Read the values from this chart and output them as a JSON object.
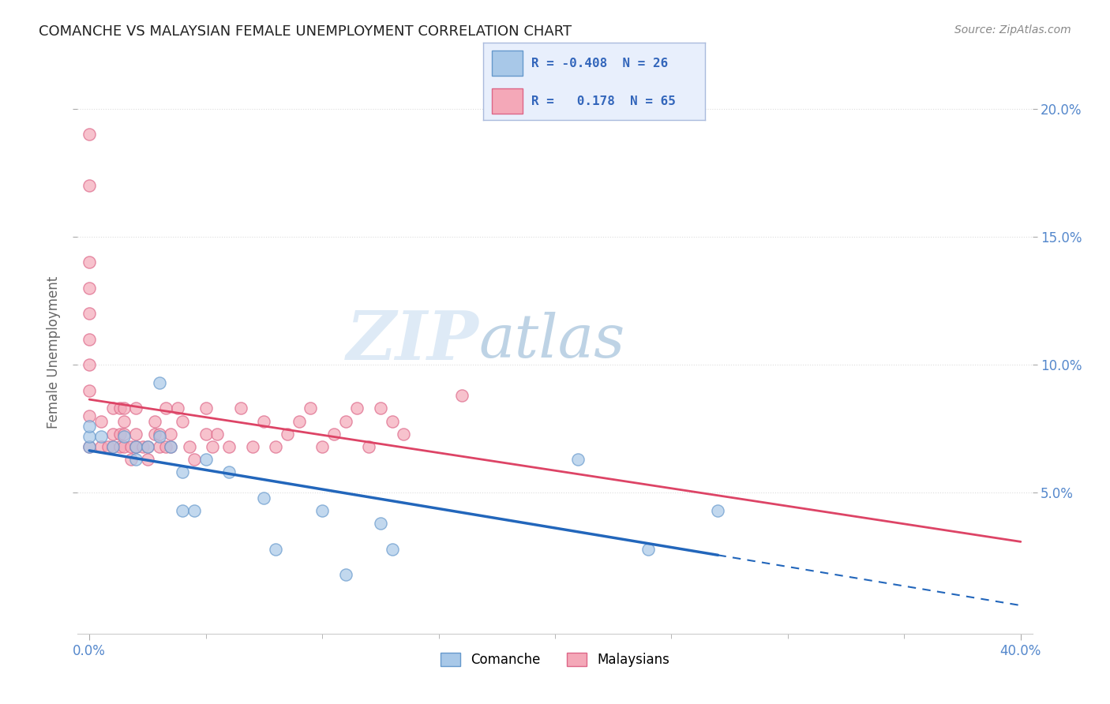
{
  "title": "COMANCHE VS MALAYSIAN FEMALE UNEMPLOYMENT CORRELATION CHART",
  "source": "Source: ZipAtlas.com",
  "ylabel": "Female Unemployment",
  "xlim": [
    -0.005,
    0.405
  ],
  "ylim": [
    -0.005,
    0.215
  ],
  "x_ticks_minor": [
    0.05,
    0.1,
    0.15,
    0.2,
    0.25,
    0.3,
    0.35
  ],
  "x_tick_edge_left": "0.0%",
  "x_tick_edge_right": "40.0%",
  "y_ticks": [
    0.05,
    0.1,
    0.15,
    0.2
  ],
  "y_tick_labels": [
    "5.0%",
    "10.0%",
    "15.0%",
    "20.0%"
  ],
  "comanche_color": "#a8c8e8",
  "comanche_edge_color": "#6699cc",
  "malaysian_color": "#f4a8b8",
  "malaysian_edge_color": "#dd6688",
  "comanche_line_color": "#2266bb",
  "malaysian_line_color": "#dd4466",
  "legend_R_comanche": "-0.408",
  "legend_N_comanche": "26",
  "legend_R_malaysian": "0.178",
  "legend_N_malaysian": "65",
  "comanche_points_x": [
    0.0,
    0.0,
    0.0,
    0.005,
    0.01,
    0.015,
    0.02,
    0.02,
    0.025,
    0.03,
    0.03,
    0.035,
    0.04,
    0.04,
    0.045,
    0.05,
    0.06,
    0.075,
    0.08,
    0.1,
    0.11,
    0.125,
    0.13,
    0.21,
    0.24,
    0.27
  ],
  "comanche_points_y": [
    0.068,
    0.072,
    0.076,
    0.072,
    0.068,
    0.072,
    0.068,
    0.063,
    0.068,
    0.072,
    0.093,
    0.068,
    0.058,
    0.043,
    0.043,
    0.063,
    0.058,
    0.048,
    0.028,
    0.043,
    0.018,
    0.038,
    0.028,
    0.063,
    0.028,
    0.043
  ],
  "malaysian_points_x": [
    0.0,
    0.0,
    0.0,
    0.0,
    0.0,
    0.0,
    0.0,
    0.0,
    0.0,
    0.0,
    0.005,
    0.005,
    0.008,
    0.01,
    0.01,
    0.01,
    0.013,
    0.013,
    0.013,
    0.015,
    0.015,
    0.015,
    0.015,
    0.018,
    0.018,
    0.02,
    0.02,
    0.02,
    0.02,
    0.023,
    0.025,
    0.025,
    0.028,
    0.028,
    0.03,
    0.03,
    0.033,
    0.033,
    0.035,
    0.035,
    0.038,
    0.04,
    0.043,
    0.045,
    0.05,
    0.05,
    0.053,
    0.055,
    0.06,
    0.065,
    0.07,
    0.075,
    0.08,
    0.085,
    0.09,
    0.095,
    0.1,
    0.105,
    0.11,
    0.115,
    0.12,
    0.125,
    0.13,
    0.135,
    0.16
  ],
  "malaysian_points_y": [
    0.19,
    0.17,
    0.14,
    0.13,
    0.12,
    0.11,
    0.1,
    0.09,
    0.08,
    0.068,
    0.068,
    0.078,
    0.068,
    0.068,
    0.073,
    0.083,
    0.068,
    0.073,
    0.083,
    0.068,
    0.073,
    0.078,
    0.083,
    0.063,
    0.068,
    0.068,
    0.068,
    0.073,
    0.083,
    0.068,
    0.068,
    0.063,
    0.073,
    0.078,
    0.073,
    0.068,
    0.083,
    0.068,
    0.068,
    0.073,
    0.083,
    0.078,
    0.068,
    0.063,
    0.073,
    0.083,
    0.068,
    0.073,
    0.068,
    0.083,
    0.068,
    0.078,
    0.068,
    0.073,
    0.078,
    0.083,
    0.068,
    0.073,
    0.078,
    0.083,
    0.068,
    0.083,
    0.078,
    0.073,
    0.088
  ],
  "bg_color": "#ffffff",
  "grid_color": "#dddddd",
  "title_color": "#222222",
  "tick_color": "#5588cc",
  "legend_bg": "#e8effc",
  "legend_edge": "#aabbdd",
  "watermark_color": "#c8ddf0",
  "watermark_text_color": "#8ab0d0"
}
